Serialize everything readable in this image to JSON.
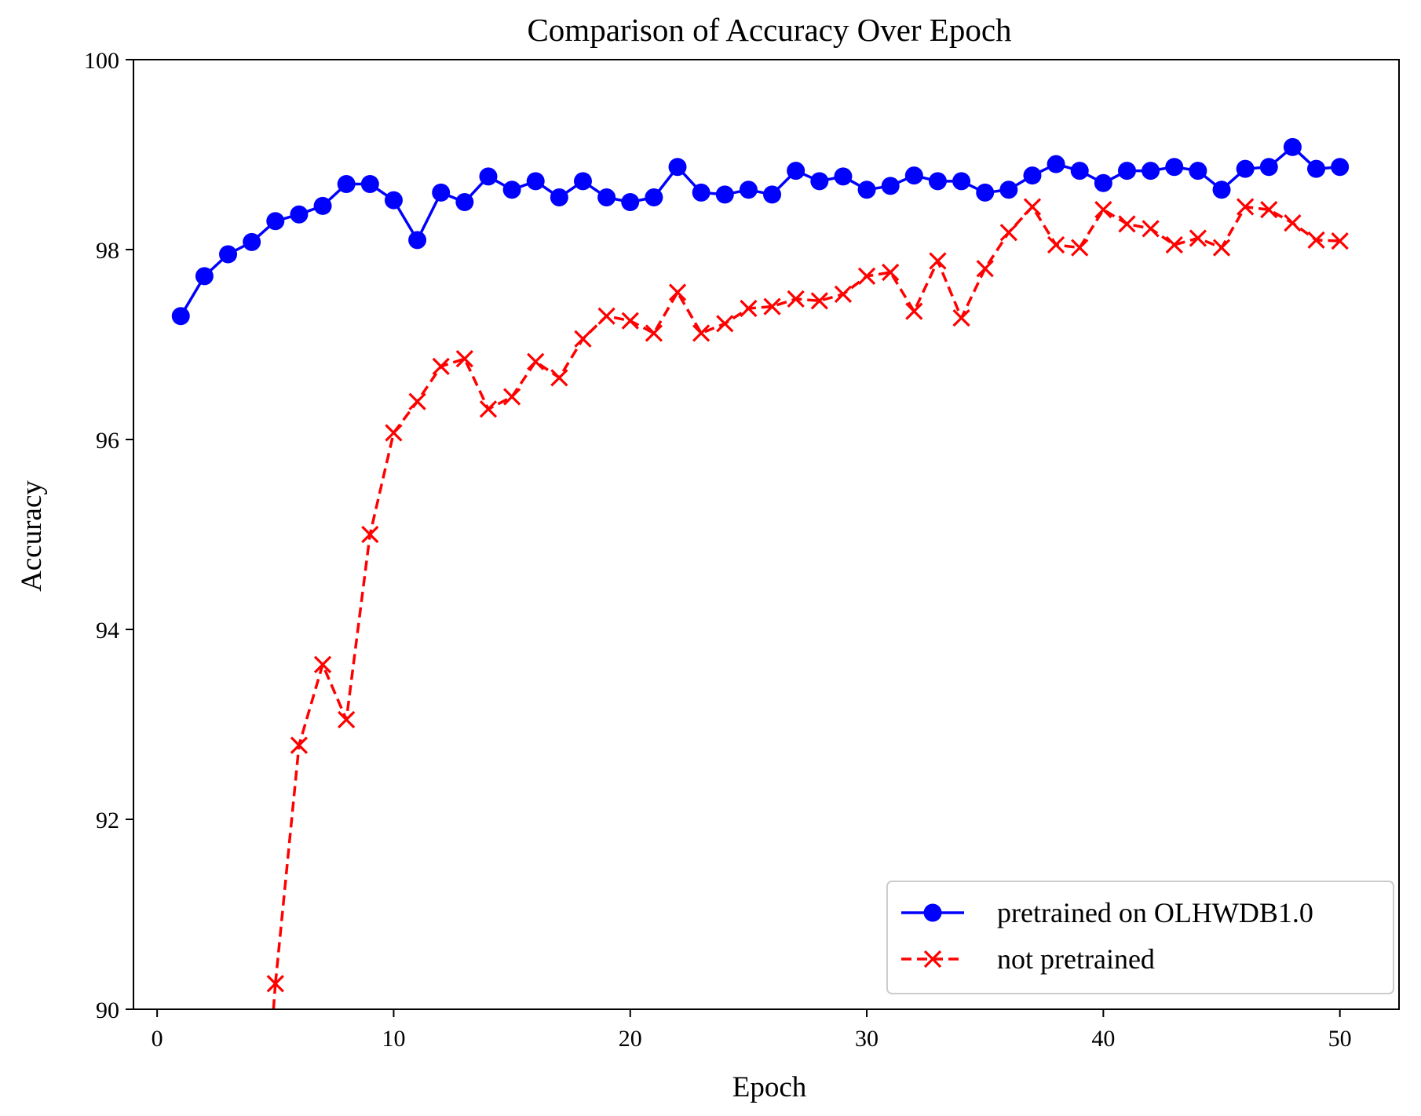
{
  "chart_data": {
    "type": "line",
    "title": "Comparison of Accuracy Over Epoch",
    "xlabel": "Epoch",
    "ylabel": "Accuracy",
    "xlim": [
      -1,
      52.5
    ],
    "ylim": [
      90,
      100
    ],
    "xticks": [
      0,
      10,
      20,
      30,
      40,
      50
    ],
    "yticks": [
      90,
      92,
      94,
      96,
      98,
      100
    ],
    "grid": false,
    "legend_position": "lower-right",
    "series": [
      {
        "name": "pretrained on OLHWDB1.0",
        "color": "#0000ff",
        "line_style": "solid",
        "marker": "circle",
        "x": [
          1,
          2,
          3,
          4,
          5,
          6,
          7,
          8,
          9,
          10,
          11,
          12,
          13,
          14,
          15,
          16,
          17,
          18,
          19,
          20,
          21,
          22,
          23,
          24,
          25,
          26,
          27,
          28,
          29,
          30,
          31,
          32,
          33,
          34,
          35,
          36,
          37,
          38,
          39,
          40,
          41,
          42,
          43,
          44,
          45,
          46,
          47,
          48,
          49,
          50
        ],
        "y": [
          97.3,
          97.72,
          97.95,
          98.08,
          98.3,
          98.37,
          98.46,
          98.69,
          98.69,
          98.52,
          98.1,
          98.6,
          98.5,
          98.77,
          98.63,
          98.72,
          98.55,
          98.72,
          98.55,
          98.5,
          98.55,
          98.87,
          98.6,
          98.58,
          98.63,
          98.58,
          98.83,
          98.72,
          98.77,
          98.63,
          98.67,
          98.78,
          98.72,
          98.72,
          98.6,
          98.63,
          98.78,
          98.9,
          98.83,
          98.7,
          98.83,
          98.83,
          98.87,
          98.83,
          98.63,
          98.85,
          98.87,
          99.08,
          98.85,
          98.87
        ]
      },
      {
        "name": "not pretrained",
        "color": "#ff0000",
        "line_style": "dashed",
        "marker": "x",
        "x": [
          5,
          6,
          7,
          8,
          9,
          10,
          11,
          12,
          13,
          14,
          15,
          16,
          17,
          18,
          19,
          20,
          21,
          22,
          23,
          24,
          25,
          26,
          27,
          28,
          29,
          30,
          31,
          32,
          33,
          34,
          35,
          36,
          37,
          38,
          39,
          40,
          41,
          42,
          43,
          44,
          45,
          46,
          47,
          48,
          49,
          50
        ],
        "y": [
          90.27,
          92.78,
          93.63,
          93.05,
          95.0,
          96.07,
          96.4,
          96.77,
          96.85,
          96.32,
          96.45,
          96.82,
          96.65,
          97.06,
          97.3,
          97.25,
          97.12,
          97.55,
          97.12,
          97.22,
          97.38,
          97.4,
          97.48,
          97.46,
          97.53,
          97.72,
          97.76,
          97.35,
          97.88,
          97.28,
          97.8,
          98.18,
          98.45,
          98.05,
          98.02,
          98.42,
          98.27,
          98.22,
          98.05,
          98.12,
          98.02,
          98.45,
          98.42,
          98.28,
          98.1,
          98.09
        ]
      }
    ]
  }
}
